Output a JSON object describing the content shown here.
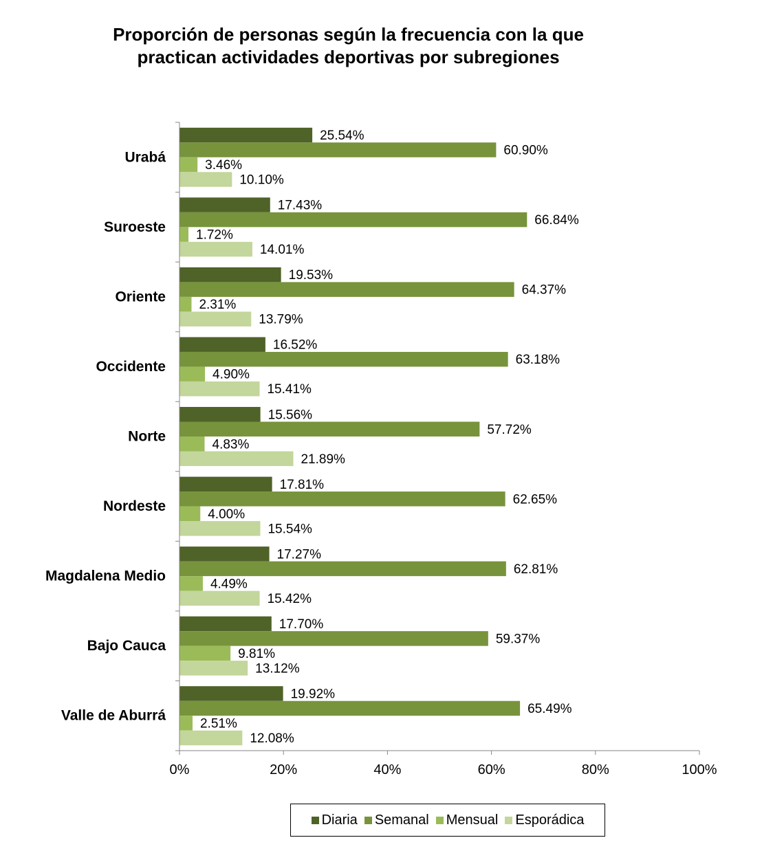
{
  "chart_data": {
    "type": "bar",
    "orientation": "horizontal",
    "title": "Proporción de personas según la frecuencia con la que practican actividades deportivas por subregiones",
    "title_lines": [
      "Proporción de personas según la frecuencia con la que",
      "practican actividades deportivas por subregiones"
    ],
    "categories": [
      "Urabá",
      "Suroeste",
      "Oriente",
      "Occidente",
      "Norte",
      "Nordeste",
      "Magdalena Medio",
      "Bajo Cauca",
      "Valle de Aburrá"
    ],
    "series": [
      {
        "name": "Diaria",
        "color": "#4f6228",
        "values": [
          25.54,
          17.43,
          19.53,
          16.52,
          15.56,
          17.81,
          17.27,
          17.7,
          19.92
        ],
        "labels": [
          "25.54%",
          "17.43%",
          "19.53%",
          "16.52%",
          "15.56%",
          "17.81%",
          "17.27%",
          "17.70%",
          "19.92%"
        ]
      },
      {
        "name": "Semanal",
        "color": "#77933c",
        "values": [
          60.9,
          66.84,
          64.37,
          63.18,
          57.72,
          62.65,
          62.81,
          59.37,
          65.49
        ],
        "labels": [
          "60.90%",
          "66.84%",
          "64.37%",
          "63.18%",
          "57.72%",
          "62.65%",
          "62.81%",
          "59.37%",
          "65.49%"
        ]
      },
      {
        "name": "Mensual",
        "color": "#9bbb59",
        "values": [
          3.46,
          1.72,
          2.31,
          4.9,
          4.83,
          4.0,
          4.49,
          9.81,
          2.51
        ],
        "labels": [
          "3.46%",
          "1.72%",
          "2.31%",
          "4.90%",
          "4.83%",
          "4.00%",
          "4.49%",
          "9.81%",
          "2.51%"
        ]
      },
      {
        "name": "Esporádica",
        "color": "#c3d69b",
        "values": [
          10.1,
          14.01,
          13.79,
          15.41,
          21.89,
          15.54,
          15.42,
          13.12,
          12.08
        ],
        "labels": [
          "10.10%",
          "14.01%",
          "13.79%",
          "15.41%",
          "21.89%",
          "15.54%",
          "15.42%",
          "13.12%",
          "12.08%"
        ]
      }
    ],
    "xlim": [
      0,
      100
    ],
    "x_ticks": [
      0,
      20,
      40,
      60,
      80,
      100
    ],
    "x_tick_labels": [
      "0%",
      "20%",
      "40%",
      "60%",
      "80%",
      "100%"
    ],
    "xlabel": "",
    "ylabel": "",
    "grid": false,
    "legend_position": "bottom"
  }
}
